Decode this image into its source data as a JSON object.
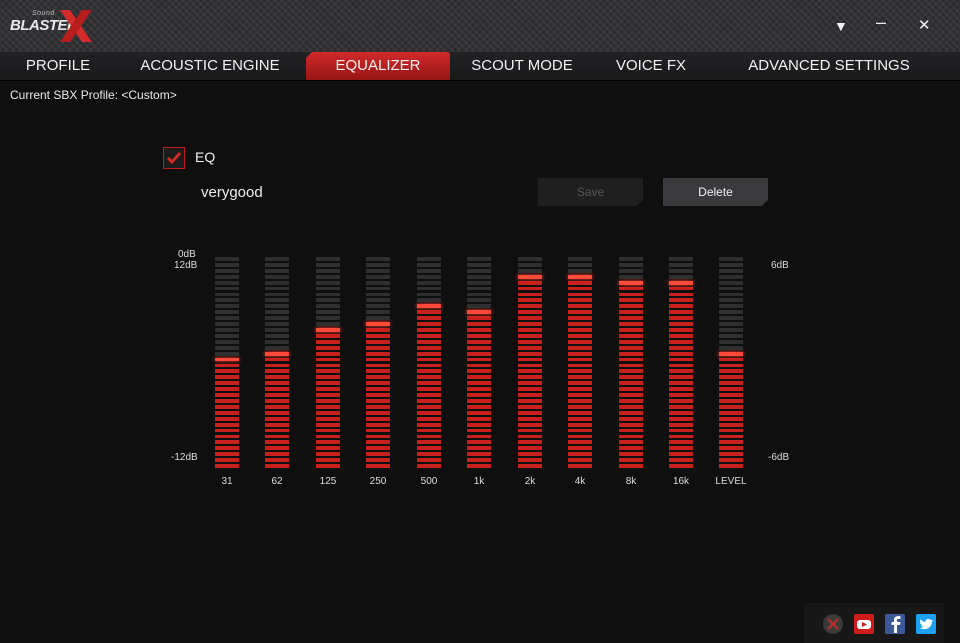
{
  "app": {
    "logo_small": "Sound",
    "logo_word": "BLASTER",
    "logo_x": "X"
  },
  "window": {
    "menu_glyph": "▼",
    "minimize_glyph": "–",
    "close_glyph": "✕"
  },
  "tabs": [
    {
      "label": "PROFILE",
      "active": false
    },
    {
      "label": "ACOUSTIC ENGINE",
      "active": false
    },
    {
      "label": "EQUALIZER",
      "active": true
    },
    {
      "label": "SCOUT MODE",
      "active": false
    },
    {
      "label": "VOICE FX",
      "active": false
    },
    {
      "label": "ADVANCED SETTINGS",
      "active": false
    }
  ],
  "profile": {
    "current_label": "Current SBX Profile: <Custom>"
  },
  "eq": {
    "checkbox_label": "EQ",
    "enabled": true,
    "preset_name": "verygood",
    "save_label": "Save",
    "save_enabled": false,
    "delete_label": "Delete",
    "left_scale": {
      "top0": "0dB",
      "top": "12dB",
      "bottom": "-12dB"
    },
    "right_scale": {
      "top": "6dB",
      "bottom": "-6dB"
    },
    "segments_per_band": 36,
    "bands": [
      {
        "label": "31",
        "level": 0.52
      },
      {
        "label": "62",
        "level": 0.56
      },
      {
        "label": "125",
        "level": 0.66
      },
      {
        "label": "250",
        "level": 0.7
      },
      {
        "label": "500",
        "level": 0.78
      },
      {
        "label": "1k",
        "level": 0.74
      },
      {
        "label": "2k",
        "level": 0.93
      },
      {
        "label": "4k",
        "level": 0.93
      },
      {
        "label": "8k",
        "level": 0.89
      },
      {
        "label": "16k",
        "level": 0.89
      },
      {
        "label": "LEVEL",
        "level": 0.56
      }
    ]
  },
  "social": [
    {
      "name": "creative-icon",
      "color": "#3a3a3a"
    },
    {
      "name": "youtube-icon",
      "color": "#cc1c1c"
    },
    {
      "name": "facebook-icon",
      "color": "#3b5998"
    },
    {
      "name": "twitter-icon",
      "color": "#1da1f2"
    }
  ],
  "colors": {
    "accent": "#d32b2b",
    "segment_on": "#c8201c",
    "segment_off": "#2f2f30"
  }
}
